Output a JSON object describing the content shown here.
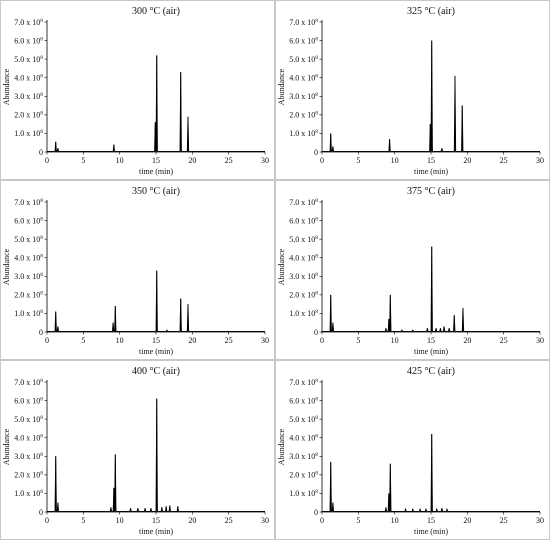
{
  "chart_data": [
    {
      "type": "line",
      "title": "300 °C (air)",
      "xlabel": "time (min)",
      "ylabel": "Abundance",
      "xlim": [
        0,
        30
      ],
      "ylim": [
        0,
        700000000.0
      ],
      "x_ticks": [
        "0",
        "5",
        "10",
        "15",
        "20",
        "25",
        "30"
      ],
      "y_ticks": [
        {
          "mantissa": "0",
          "exp": ""
        },
        {
          "mantissa": "1.0 x 10",
          "exp": "8"
        },
        {
          "mantissa": "2.0 x 10",
          "exp": "8"
        },
        {
          "mantissa": "3.0 x 10",
          "exp": "8"
        },
        {
          "mantissa": "4.0 x 10",
          "exp": "8"
        },
        {
          "mantissa": "5.0 x 10",
          "exp": "8"
        },
        {
          "mantissa": "6.0 x 10",
          "exp": "8"
        },
        {
          "mantissa": "7.0 x 10",
          "exp": "8"
        }
      ],
      "peaks": [
        {
          "x": 1.2,
          "y": 55000000.0
        },
        {
          "x": 1.5,
          "y": 20000000.0
        },
        {
          "x": 9.2,
          "y": 40000000.0
        },
        {
          "x": 14.9,
          "y": 160000000.0
        },
        {
          "x": 15.1,
          "y": 520000000.0
        },
        {
          "x": 18.4,
          "y": 430000000.0
        },
        {
          "x": 19.4,
          "y": 190000000.0
        }
      ]
    },
    {
      "type": "line",
      "title": "325 °C (air)",
      "xlabel": "time (min)",
      "ylabel": "Abundance",
      "xlim": [
        0,
        30
      ],
      "ylim": [
        0,
        700000000.0
      ],
      "x_ticks": [
        "0",
        "5",
        "10",
        "15",
        "20",
        "25",
        "30"
      ],
      "y_ticks": [
        {
          "mantissa": "0",
          "exp": ""
        },
        {
          "mantissa": "1.0 x 10",
          "exp": "8"
        },
        {
          "mantissa": "2.0 x 10",
          "exp": "8"
        },
        {
          "mantissa": "3.0 x 10",
          "exp": "8"
        },
        {
          "mantissa": "4.0 x 10",
          "exp": "8"
        },
        {
          "mantissa": "5.0 x 10",
          "exp": "8"
        },
        {
          "mantissa": "6.0 x 10",
          "exp": "8"
        },
        {
          "mantissa": "7.0 x 10",
          "exp": "8"
        }
      ],
      "peaks": [
        {
          "x": 1.2,
          "y": 100000000.0
        },
        {
          "x": 1.5,
          "y": 30000000.0
        },
        {
          "x": 9.3,
          "y": 70000000.0
        },
        {
          "x": 14.9,
          "y": 150000000.0
        },
        {
          "x": 15.1,
          "y": 600000000.0
        },
        {
          "x": 16.5,
          "y": 20000000.0
        },
        {
          "x": 18.3,
          "y": 410000000.0
        },
        {
          "x": 19.3,
          "y": 250000000.0
        }
      ]
    },
    {
      "type": "line",
      "title": "350 °C (air)",
      "xlabel": "time (min)",
      "ylabel": "Abundance",
      "xlim": [
        0,
        30
      ],
      "ylim": [
        0,
        700000000.0
      ],
      "x_ticks": [
        "0",
        "5",
        "10",
        "15",
        "20",
        "25",
        "30"
      ],
      "y_ticks": [
        {
          "mantissa": "0",
          "exp": ""
        },
        {
          "mantissa": "1.0 x 10",
          "exp": "8"
        },
        {
          "mantissa": "2.0 x 10",
          "exp": "8"
        },
        {
          "mantissa": "3.0 x 10",
          "exp": "8"
        },
        {
          "mantissa": "4.0 x 10",
          "exp": "8"
        },
        {
          "mantissa": "5.0 x 10",
          "exp": "8"
        },
        {
          "mantissa": "6.0 x 10",
          "exp": "8"
        },
        {
          "mantissa": "7.0 x 10",
          "exp": "8"
        }
      ],
      "peaks": [
        {
          "x": 1.2,
          "y": 110000000.0
        },
        {
          "x": 1.5,
          "y": 30000000.0
        },
        {
          "x": 9.1,
          "y": 50000000.0
        },
        {
          "x": 9.4,
          "y": 140000000.0
        },
        {
          "x": 15.1,
          "y": 330000000.0
        },
        {
          "x": 16.5,
          "y": 10000000.0
        },
        {
          "x": 18.4,
          "y": 180000000.0
        },
        {
          "x": 19.4,
          "y": 150000000.0
        }
      ]
    },
    {
      "type": "line",
      "title": "375 °C (air)",
      "xlabel": "time (min)",
      "ylabel": "Abundance",
      "xlim": [
        0,
        30
      ],
      "ylim": [
        0,
        700000000.0
      ],
      "x_ticks": [
        "0",
        "5",
        "10",
        "15",
        "20",
        "25",
        "30"
      ],
      "y_ticks": [
        {
          "mantissa": "0",
          "exp": ""
        },
        {
          "mantissa": "1.0 x 10",
          "exp": "8"
        },
        {
          "mantissa": "2.0 x 10",
          "exp": "8"
        },
        {
          "mantissa": "3.0 x 10",
          "exp": "8"
        },
        {
          "mantissa": "4.0 x 10",
          "exp": "8"
        },
        {
          "mantissa": "5.0 x 10",
          "exp": "8"
        },
        {
          "mantissa": "6.0 x 10",
          "exp": "8"
        },
        {
          "mantissa": "7.0 x 10",
          "exp": "8"
        }
      ],
      "peaks": [
        {
          "x": 1.2,
          "y": 200000000.0
        },
        {
          "x": 1.5,
          "y": 50000000.0
        },
        {
          "x": 8.8,
          "y": 20000000.0
        },
        {
          "x": 9.2,
          "y": 70000000.0
        },
        {
          "x": 9.4,
          "y": 200000000.0
        },
        {
          "x": 11.0,
          "y": 10000000.0
        },
        {
          "x": 12.5,
          "y": 10000000.0
        },
        {
          "x": 14.5,
          "y": 20000000.0
        },
        {
          "x": 15.1,
          "y": 460000000.0
        },
        {
          "x": 15.7,
          "y": 20000000.0
        },
        {
          "x": 16.3,
          "y": 20000000.0
        },
        {
          "x": 16.8,
          "y": 30000000.0
        },
        {
          "x": 17.5,
          "y": 20000000.0
        },
        {
          "x": 18.2,
          "y": 90000000.0
        },
        {
          "x": 19.4,
          "y": 130000000.0
        }
      ]
    },
    {
      "type": "line",
      "title": "400 °C (air)",
      "xlabel": "time (min)",
      "ylabel": "Abundance",
      "xlim": [
        0,
        30
      ],
      "ylim": [
        0,
        700000000.0
      ],
      "x_ticks": [
        "0",
        "5",
        "10",
        "15",
        "20",
        "25",
        "30"
      ],
      "y_ticks": [
        {
          "mantissa": "0",
          "exp": ""
        },
        {
          "mantissa": "1.0 x 10",
          "exp": "8"
        },
        {
          "mantissa": "2.0 x 10",
          "exp": "8"
        },
        {
          "mantissa": "3.0 x 10",
          "exp": "8"
        },
        {
          "mantissa": "4.0 x 10",
          "exp": "8"
        },
        {
          "mantissa": "5.0 x 10",
          "exp": "8"
        },
        {
          "mantissa": "6.0 x 10",
          "exp": "8"
        },
        {
          "mantissa": "7.0 x 10",
          "exp": "8"
        }
      ],
      "peaks": [
        {
          "x": 1.2,
          "y": 300000000.0
        },
        {
          "x": 1.5,
          "y": 50000000.0
        },
        {
          "x": 8.8,
          "y": 25000000.0
        },
        {
          "x": 9.2,
          "y": 130000000.0
        },
        {
          "x": 9.4,
          "y": 310000000.0
        },
        {
          "x": 11.5,
          "y": 20000000.0
        },
        {
          "x": 12.5,
          "y": 20000000.0
        },
        {
          "x": 13.5,
          "y": 20000000.0
        },
        {
          "x": 14.3,
          "y": 20000000.0
        },
        {
          "x": 15.1,
          "y": 610000000.0
        },
        {
          "x": 15.8,
          "y": 25000000.0
        },
        {
          "x": 16.4,
          "y": 30000000.0
        },
        {
          "x": 16.9,
          "y": 35000000.0
        },
        {
          "x": 18.0,
          "y": 30000000.0
        }
      ]
    },
    {
      "type": "line",
      "title": "425 °C (air)",
      "xlabel": "time (min)",
      "ylabel": "Abundance",
      "xlim": [
        0,
        30
      ],
      "ylim": [
        0,
        700000000.0
      ],
      "x_ticks": [
        "0",
        "5",
        "10",
        "15",
        "20",
        "25",
        "30"
      ],
      "y_ticks": [
        {
          "mantissa": "0",
          "exp": ""
        },
        {
          "mantissa": "1.0 x 10",
          "exp": "8"
        },
        {
          "mantissa": "2.0 x 10",
          "exp": "8"
        },
        {
          "mantissa": "3.0 x 10",
          "exp": "8"
        },
        {
          "mantissa": "4.0 x 10",
          "exp": "8"
        },
        {
          "mantissa": "5.0 x 10",
          "exp": "8"
        },
        {
          "mantissa": "6.0 x 10",
          "exp": "8"
        },
        {
          "mantissa": "7.0 x 10",
          "exp": "8"
        }
      ],
      "peaks": [
        {
          "x": 1.2,
          "y": 270000000.0
        },
        {
          "x": 1.5,
          "y": 50000000.0
        },
        {
          "x": 8.8,
          "y": 25000000.0
        },
        {
          "x": 9.2,
          "y": 100000000.0
        },
        {
          "x": 9.4,
          "y": 260000000.0
        },
        {
          "x": 11.5,
          "y": 15000000.0
        },
        {
          "x": 12.5,
          "y": 15000000.0
        },
        {
          "x": 13.5,
          "y": 15000000.0
        },
        {
          "x": 14.3,
          "y": 15000000.0
        },
        {
          "x": 15.1,
          "y": 420000000.0
        },
        {
          "x": 15.8,
          "y": 15000000.0
        },
        {
          "x": 16.5,
          "y": 20000000.0
        },
        {
          "x": 17.2,
          "y": 15000000.0
        }
      ]
    }
  ]
}
